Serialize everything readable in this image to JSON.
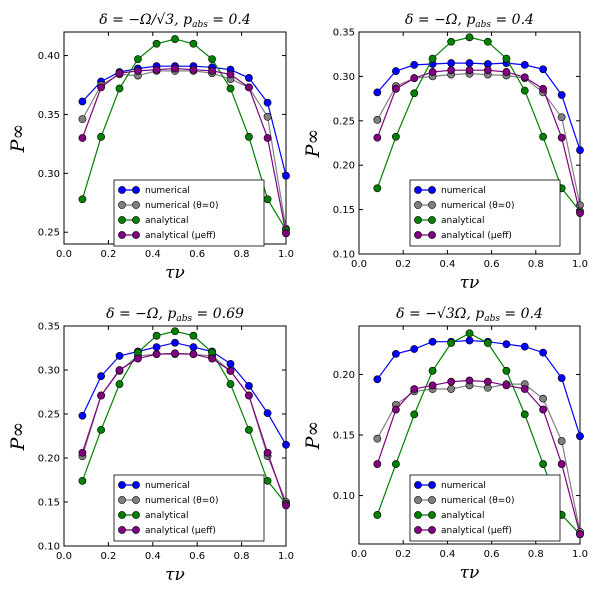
{
  "chart_data": [
    {
      "type": "line",
      "title": "δ = −Ω/√3,  p_abs = 0.4",
      "title_parts": {
        "lhs": "δ = −Ω/√3,",
        "p": "p",
        "sub": "abs",
        "rhs": " = 0.4"
      },
      "xlabel": "τν",
      "ylabel": "P∞",
      "xlim": [
        0.0,
        1.0
      ],
      "ylim": [
        0.24,
        0.42
      ],
      "xticks": [
        "0.0",
        "0.2",
        "0.4",
        "0.6",
        "0.8",
        "1.0"
      ],
      "yticks": [
        "0.25",
        "0.30",
        "0.35",
        "0.40"
      ],
      "ytick_values": [
        0.25,
        0.3,
        0.35,
        0.4
      ],
      "x": [
        0.083,
        0.167,
        0.25,
        0.333,
        0.417,
        0.5,
        0.583,
        0.667,
        0.75,
        0.833,
        0.917,
        1.0
      ],
      "series": [
        {
          "name": "numerical",
          "color": "#0000ff",
          "values": [
            0.361,
            0.378,
            0.386,
            0.389,
            0.391,
            0.391,
            0.391,
            0.39,
            0.388,
            0.381,
            0.36,
            0.298
          ]
        },
        {
          "name": "numerical (θ=0)",
          "color": "#808080",
          "values": [
            0.346,
            0.375,
            0.384,
            0.383,
            0.387,
            0.387,
            0.387,
            0.385,
            0.38,
            0.373,
            0.348,
            0.253
          ]
        },
        {
          "name": "analytical",
          "color": "#008000",
          "values": [
            0.278,
            0.331,
            0.372,
            0.397,
            0.41,
            0.414,
            0.41,
            0.397,
            0.372,
            0.331,
            0.278,
            0.252
          ]
        },
        {
          "name": "analytical (μeff)",
          "color": "#800080",
          "values": [
            0.33,
            0.373,
            0.385,
            0.387,
            0.388,
            0.389,
            0.388,
            0.387,
            0.384,
            0.373,
            0.33,
            0.249
          ]
        }
      ],
      "legend_position": "lower center"
    },
    {
      "type": "line",
      "title": "δ = −Ω,  p_abs = 0.4",
      "title_parts": {
        "lhs": "δ = −Ω,",
        "p": "p",
        "sub": "abs",
        "rhs": " = 0.4"
      },
      "xlabel": "τν",
      "ylabel": "P∞",
      "xlim": [
        0.0,
        1.0
      ],
      "ylim": [
        0.1,
        0.35
      ],
      "xticks": [
        "0.0",
        "0.2",
        "0.4",
        "0.6",
        "0.8",
        "1.0"
      ],
      "yticks": [
        "0.10",
        "0.15",
        "0.20",
        "0.25",
        "0.30",
        "0.35"
      ],
      "ytick_values": [
        0.1,
        0.15,
        0.2,
        0.25,
        0.3,
        0.35
      ],
      "x": [
        0.083,
        0.167,
        0.25,
        0.333,
        0.417,
        0.5,
        0.583,
        0.667,
        0.75,
        0.833,
        0.917,
        1.0
      ],
      "series": [
        {
          "name": "numerical",
          "color": "#0000ff",
          "values": [
            0.282,
            0.306,
            0.313,
            0.314,
            0.315,
            0.315,
            0.314,
            0.315,
            0.313,
            0.308,
            0.279,
            0.217
          ]
        },
        {
          "name": "numerical (θ=0)",
          "color": "#808080",
          "values": [
            0.251,
            0.289,
            0.298,
            0.3,
            0.302,
            0.303,
            0.302,
            0.301,
            0.298,
            0.282,
            0.254,
            0.155
          ]
        },
        {
          "name": "analytical",
          "color": "#008000",
          "values": [
            0.174,
            0.232,
            0.281,
            0.32,
            0.339,
            0.344,
            0.339,
            0.32,
            0.284,
            0.232,
            0.174,
            0.148
          ]
        },
        {
          "name": "analytical (μeff)",
          "color": "#800080",
          "values": [
            0.231,
            0.286,
            0.298,
            0.305,
            0.307,
            0.307,
            0.307,
            0.305,
            0.299,
            0.286,
            0.231,
            0.146
          ]
        }
      ],
      "legend_position": "lower center"
    },
    {
      "type": "line",
      "title": "δ = −Ω,  p_abs = 0.69",
      "title_parts": {
        "lhs": "δ = −Ω,",
        "p": "p",
        "sub": "abs",
        "rhs": " = 0.69"
      },
      "xlabel": "τν",
      "ylabel": "P∞",
      "xlim": [
        0.0,
        1.0
      ],
      "ylim": [
        0.1,
        0.35
      ],
      "xticks": [
        "0.0",
        "0.2",
        "0.4",
        "0.6",
        "0.8",
        "1.0"
      ],
      "yticks": [
        "0.10",
        "0.15",
        "0.20",
        "0.25",
        "0.30",
        "0.35"
      ],
      "ytick_values": [
        0.1,
        0.15,
        0.2,
        0.25,
        0.3,
        0.35
      ],
      "x": [
        0.083,
        0.167,
        0.25,
        0.333,
        0.417,
        0.5,
        0.583,
        0.667,
        0.75,
        0.833,
        0.917,
        1.0
      ],
      "series": [
        {
          "name": "numerical",
          "color": "#0000ff",
          "values": [
            0.248,
            0.293,
            0.316,
            0.321,
            0.326,
            0.331,
            0.326,
            0.321,
            0.307,
            0.282,
            0.251,
            0.215
          ]
        },
        {
          "name": "numerical (θ=0)",
          "color": "#808080",
          "values": [
            0.202,
            0.271,
            0.299,
            0.316,
            0.318,
            0.318,
            0.318,
            0.316,
            0.299,
            0.271,
            0.202,
            0.15
          ]
        },
        {
          "name": "analytical",
          "color": "#008000",
          "values": [
            0.174,
            0.232,
            0.284,
            0.32,
            0.339,
            0.344,
            0.339,
            0.32,
            0.284,
            0.232,
            0.174,
            0.148
          ]
        },
        {
          "name": "analytical (μeff)",
          "color": "#800080",
          "values": [
            0.206,
            0.271,
            0.3,
            0.313,
            0.318,
            0.319,
            0.318,
            0.313,
            0.299,
            0.271,
            0.206,
            0.146
          ]
        }
      ],
      "legend_position": "lower center"
    },
    {
      "type": "line",
      "title": "δ = −√3Ω,  p_abs = 0.4",
      "title_parts": {
        "lhs": "δ = −√3Ω,",
        "p": "p",
        "sub": "abs",
        "rhs": " = 0.4"
      },
      "xlabel": "τν",
      "ylabel": "P∞",
      "xlim": [
        0.0,
        1.0
      ],
      "ylim": [
        0.06,
        0.24
      ],
      "xticks": [
        "0.0",
        "0.2",
        "0.4",
        "0.6",
        "0.8",
        "1.0"
      ],
      "yticks": [
        "0.10",
        "0.15",
        "0.20"
      ],
      "ytick_values": [
        0.1,
        0.15,
        0.2
      ],
      "x": [
        0.083,
        0.167,
        0.25,
        0.333,
        0.417,
        0.5,
        0.583,
        0.667,
        0.75,
        0.833,
        0.917,
        1.0
      ],
      "series": [
        {
          "name": "numerical",
          "color": "#0000ff",
          "values": [
            0.196,
            0.217,
            0.221,
            0.227,
            0.227,
            0.228,
            0.227,
            0.225,
            0.223,
            0.218,
            0.197,
            0.149
          ]
        },
        {
          "name": "numerical (θ=0)",
          "color": "#808080",
          "values": [
            0.147,
            0.175,
            0.186,
            0.188,
            0.188,
            0.191,
            0.189,
            0.192,
            0.192,
            0.18,
            0.145,
            0.07
          ]
        },
        {
          "name": "analytical",
          "color": "#008000",
          "values": [
            0.084,
            0.126,
            0.167,
            0.203,
            0.226,
            0.234,
            0.226,
            0.203,
            0.167,
            0.126,
            0.084,
            0.068
          ]
        },
        {
          "name": "analytical (μeff)",
          "color": "#800080",
          "values": [
            0.126,
            0.171,
            0.188,
            0.191,
            0.194,
            0.195,
            0.194,
            0.191,
            0.188,
            0.171,
            0.126,
            0.068
          ]
        }
      ],
      "legend_position": "upper center"
    }
  ]
}
